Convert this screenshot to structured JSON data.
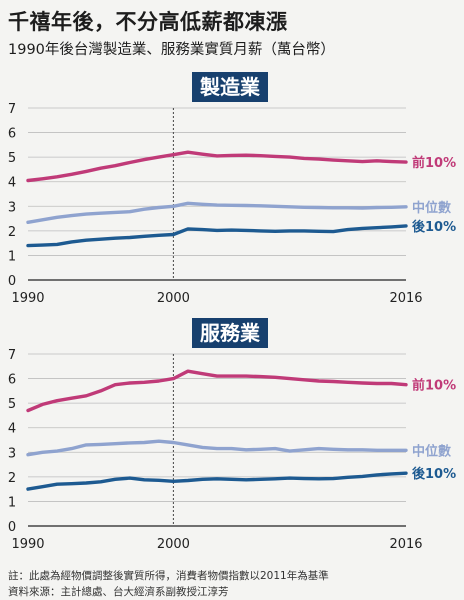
{
  "header": {
    "title": "千禧年後，不分高低薪都凍漲",
    "subtitle": "1990年後台灣製造業、服務業實質月薪（萬台幣）"
  },
  "colors": {
    "top10": "#c03a78",
    "median": "#8fa3cf",
    "bottom10": "#1d5a91",
    "badge": "#17406e"
  },
  "chart_data": [
    {
      "type": "line",
      "title": "製造業",
      "x_tick_labels": [
        "1990",
        "2000",
        "2016"
      ],
      "y_ticks": [
        0,
        1,
        2,
        3,
        4,
        5,
        6,
        7
      ],
      "xlim": [
        1990,
        2016
      ],
      "ylim": [
        0,
        7
      ],
      "marker_year": 2000,
      "grid": true,
      "x": [
        1990,
        1991,
        1992,
        1993,
        1994,
        1995,
        1996,
        1997,
        1998,
        1999,
        2000,
        2001,
        2002,
        2003,
        2004,
        2005,
        2006,
        2007,
        2008,
        2009,
        2010,
        2011,
        2012,
        2013,
        2014,
        2015,
        2016
      ],
      "series": [
        {
          "name": "前10%",
          "key": "top10",
          "values": [
            4.05,
            4.12,
            4.2,
            4.3,
            4.42,
            4.55,
            4.65,
            4.78,
            4.9,
            5.0,
            5.1,
            5.2,
            5.12,
            5.05,
            5.07,
            5.08,
            5.06,
            5.03,
            5.0,
            4.95,
            4.92,
            4.88,
            4.85,
            4.82,
            4.85,
            4.82,
            4.8
          ]
        },
        {
          "name": "中位數",
          "key": "median",
          "values": [
            2.35,
            2.45,
            2.55,
            2.62,
            2.68,
            2.72,
            2.75,
            2.78,
            2.88,
            2.95,
            3.0,
            3.12,
            3.08,
            3.05,
            3.04,
            3.03,
            3.02,
            3.0,
            2.98,
            2.96,
            2.95,
            2.94,
            2.94,
            2.93,
            2.95,
            2.96,
            2.98
          ]
        },
        {
          "name": "後10%",
          "key": "bottom10",
          "values": [
            1.4,
            1.42,
            1.45,
            1.55,
            1.62,
            1.66,
            1.7,
            1.73,
            1.78,
            1.82,
            1.85,
            2.08,
            2.05,
            2.02,
            2.03,
            2.02,
            2.0,
            1.98,
            2.0,
            2.0,
            1.98,
            1.97,
            2.05,
            2.1,
            2.13,
            2.16,
            2.2
          ]
        }
      ]
    },
    {
      "type": "line",
      "title": "服務業",
      "x_tick_labels": [
        "1990",
        "2000",
        "2016"
      ],
      "y_ticks": [
        0,
        1,
        2,
        3,
        4,
        5,
        6,
        7
      ],
      "xlim": [
        1990,
        2016
      ],
      "ylim": [
        0,
        7
      ],
      "marker_year": 2000,
      "grid": true,
      "x": [
        1990,
        1991,
        1992,
        1993,
        1994,
        1995,
        1996,
        1997,
        1998,
        1999,
        2000,
        2001,
        2002,
        2003,
        2004,
        2005,
        2006,
        2007,
        2008,
        2009,
        2010,
        2011,
        2012,
        2013,
        2014,
        2015,
        2016
      ],
      "series": [
        {
          "name": "前10%",
          "key": "top10",
          "values": [
            4.7,
            4.95,
            5.1,
            5.2,
            5.3,
            5.5,
            5.75,
            5.82,
            5.85,
            5.9,
            6.0,
            6.3,
            6.2,
            6.1,
            6.1,
            6.1,
            6.08,
            6.05,
            6.0,
            5.95,
            5.9,
            5.88,
            5.85,
            5.82,
            5.8,
            5.8,
            5.75
          ]
        },
        {
          "name": "中位數",
          "key": "median",
          "values": [
            2.9,
            3.0,
            3.05,
            3.15,
            3.3,
            3.32,
            3.35,
            3.38,
            3.4,
            3.45,
            3.4,
            3.3,
            3.2,
            3.15,
            3.15,
            3.1,
            3.12,
            3.15,
            3.05,
            3.1,
            3.15,
            3.12,
            3.1,
            3.1,
            3.08,
            3.08,
            3.08
          ]
        },
        {
          "name": "後10%",
          "key": "bottom10",
          "values": [
            1.5,
            1.6,
            1.7,
            1.72,
            1.75,
            1.8,
            1.9,
            1.95,
            1.88,
            1.86,
            1.82,
            1.85,
            1.9,
            1.92,
            1.9,
            1.88,
            1.9,
            1.92,
            1.95,
            1.93,
            1.92,
            1.93,
            1.98,
            2.02,
            2.08,
            2.12,
            2.15
          ]
        }
      ]
    }
  ],
  "footnote": "註：此處為經物價調整後實質所得，消費者物價指數以2011年為基準",
  "source": "資料來源：主計總處、台大經濟系副教授江淳芳"
}
